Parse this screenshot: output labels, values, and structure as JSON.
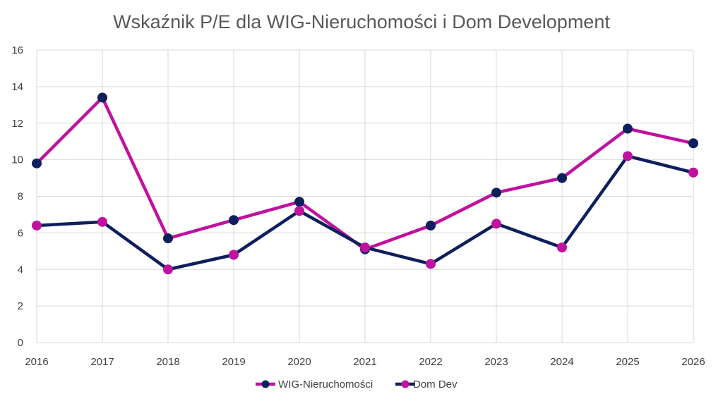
{
  "chart_data": {
    "type": "line",
    "title": "Wskaźnik P/E dla WIG-Nieruchomości i Dom Development",
    "xlabel": "",
    "ylabel": "",
    "x": [
      "2016",
      "2017",
      "2018",
      "2019",
      "2020",
      "2021",
      "2022",
      "2023",
      "2024",
      "2025",
      "2026"
    ],
    "ylim": [
      0,
      16
    ],
    "yticks": [
      0,
      2,
      4,
      6,
      8,
      10,
      12,
      14,
      16
    ],
    "grid": true,
    "legend_position": "bottom",
    "series": [
      {
        "name": "WIG-Nieruchomości",
        "line_color": "#c0119f",
        "marker_color": "#0d1f5c",
        "values": [
          9.8,
          13.4,
          5.7,
          6.7,
          7.7,
          5.1,
          6.4,
          8.2,
          9.0,
          11.7,
          10.9
        ]
      },
      {
        "name": "Dom Dev",
        "line_color": "#0d1f5c",
        "marker_color": "#c0119f",
        "values": [
          6.4,
          6.6,
          4.0,
          4.8,
          7.2,
          5.2,
          4.3,
          6.5,
          5.2,
          10.2,
          9.3
        ]
      }
    ]
  }
}
